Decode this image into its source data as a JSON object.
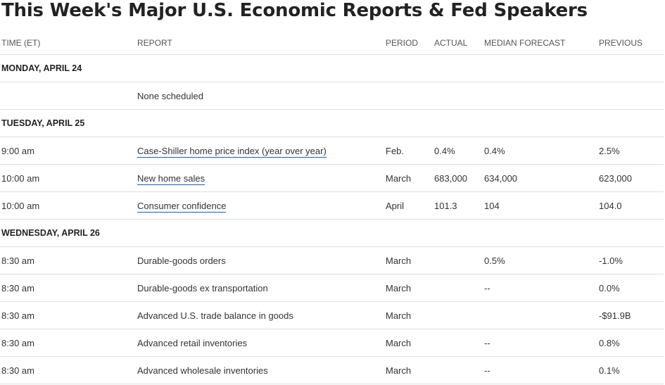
{
  "title": "This Week's Major U.S. Economic Reports & Fed Speakers",
  "columns": {
    "time": "TIME (ET)",
    "report": "REPORT",
    "period": "PERIOD",
    "actual": "ACTUAL",
    "median": "MEDIAN FORECAST",
    "previous": "PREVIOUS"
  },
  "days": [
    {
      "label": "MONDAY, APRIL 24",
      "rows": [
        {
          "time": "",
          "report": "None scheduled",
          "link": false,
          "period": "",
          "actual": "",
          "median": "",
          "previous": ""
        }
      ]
    },
    {
      "label": "TUESDAY, APRIL 25",
      "rows": [
        {
          "time": "9:00 am",
          "report": "Case-Shiller home price index (year over year)",
          "link": true,
          "period": "Feb.",
          "actual": "0.4%",
          "median": "0.4%",
          "previous": "2.5%"
        },
        {
          "time": "10:00 am",
          "report": "New home sales",
          "link": true,
          "period": "March",
          "actual": "683,000",
          "median": "634,000",
          "previous": "623,000"
        },
        {
          "time": "10:00 am",
          "report": "Consumer confidence",
          "link": true,
          "period": "April",
          "actual": "101.3",
          "median": "104",
          "previous": "104.0"
        }
      ]
    },
    {
      "label": "WEDNESDAY, APRIL 26",
      "rows": [
        {
          "time": "8:30 am",
          "report": "Durable-goods orders",
          "link": false,
          "period": "March",
          "actual": "",
          "median": "0.5%",
          "previous": "-1.0%"
        },
        {
          "time": "8:30 am",
          "report": "Durable-goods ex transportation",
          "link": false,
          "period": "March",
          "actual": "",
          "median": "--",
          "previous": "0.0%"
        },
        {
          "time": "8:30 am",
          "report": "Advanced U.S. trade balance in goods",
          "link": false,
          "period": "March",
          "actual": "",
          "median": "",
          "previous": "-$91.9B"
        },
        {
          "time": "8:30 am",
          "report": "Advanced retail inventories",
          "link": false,
          "period": "March",
          "actual": "",
          "median": "--",
          "previous": "0.8%"
        },
        {
          "time": "8:30 am",
          "report": "Advanced wholesale inventories",
          "link": false,
          "period": "March",
          "actual": "",
          "median": "--",
          "previous": "0.1%"
        }
      ]
    }
  ]
}
